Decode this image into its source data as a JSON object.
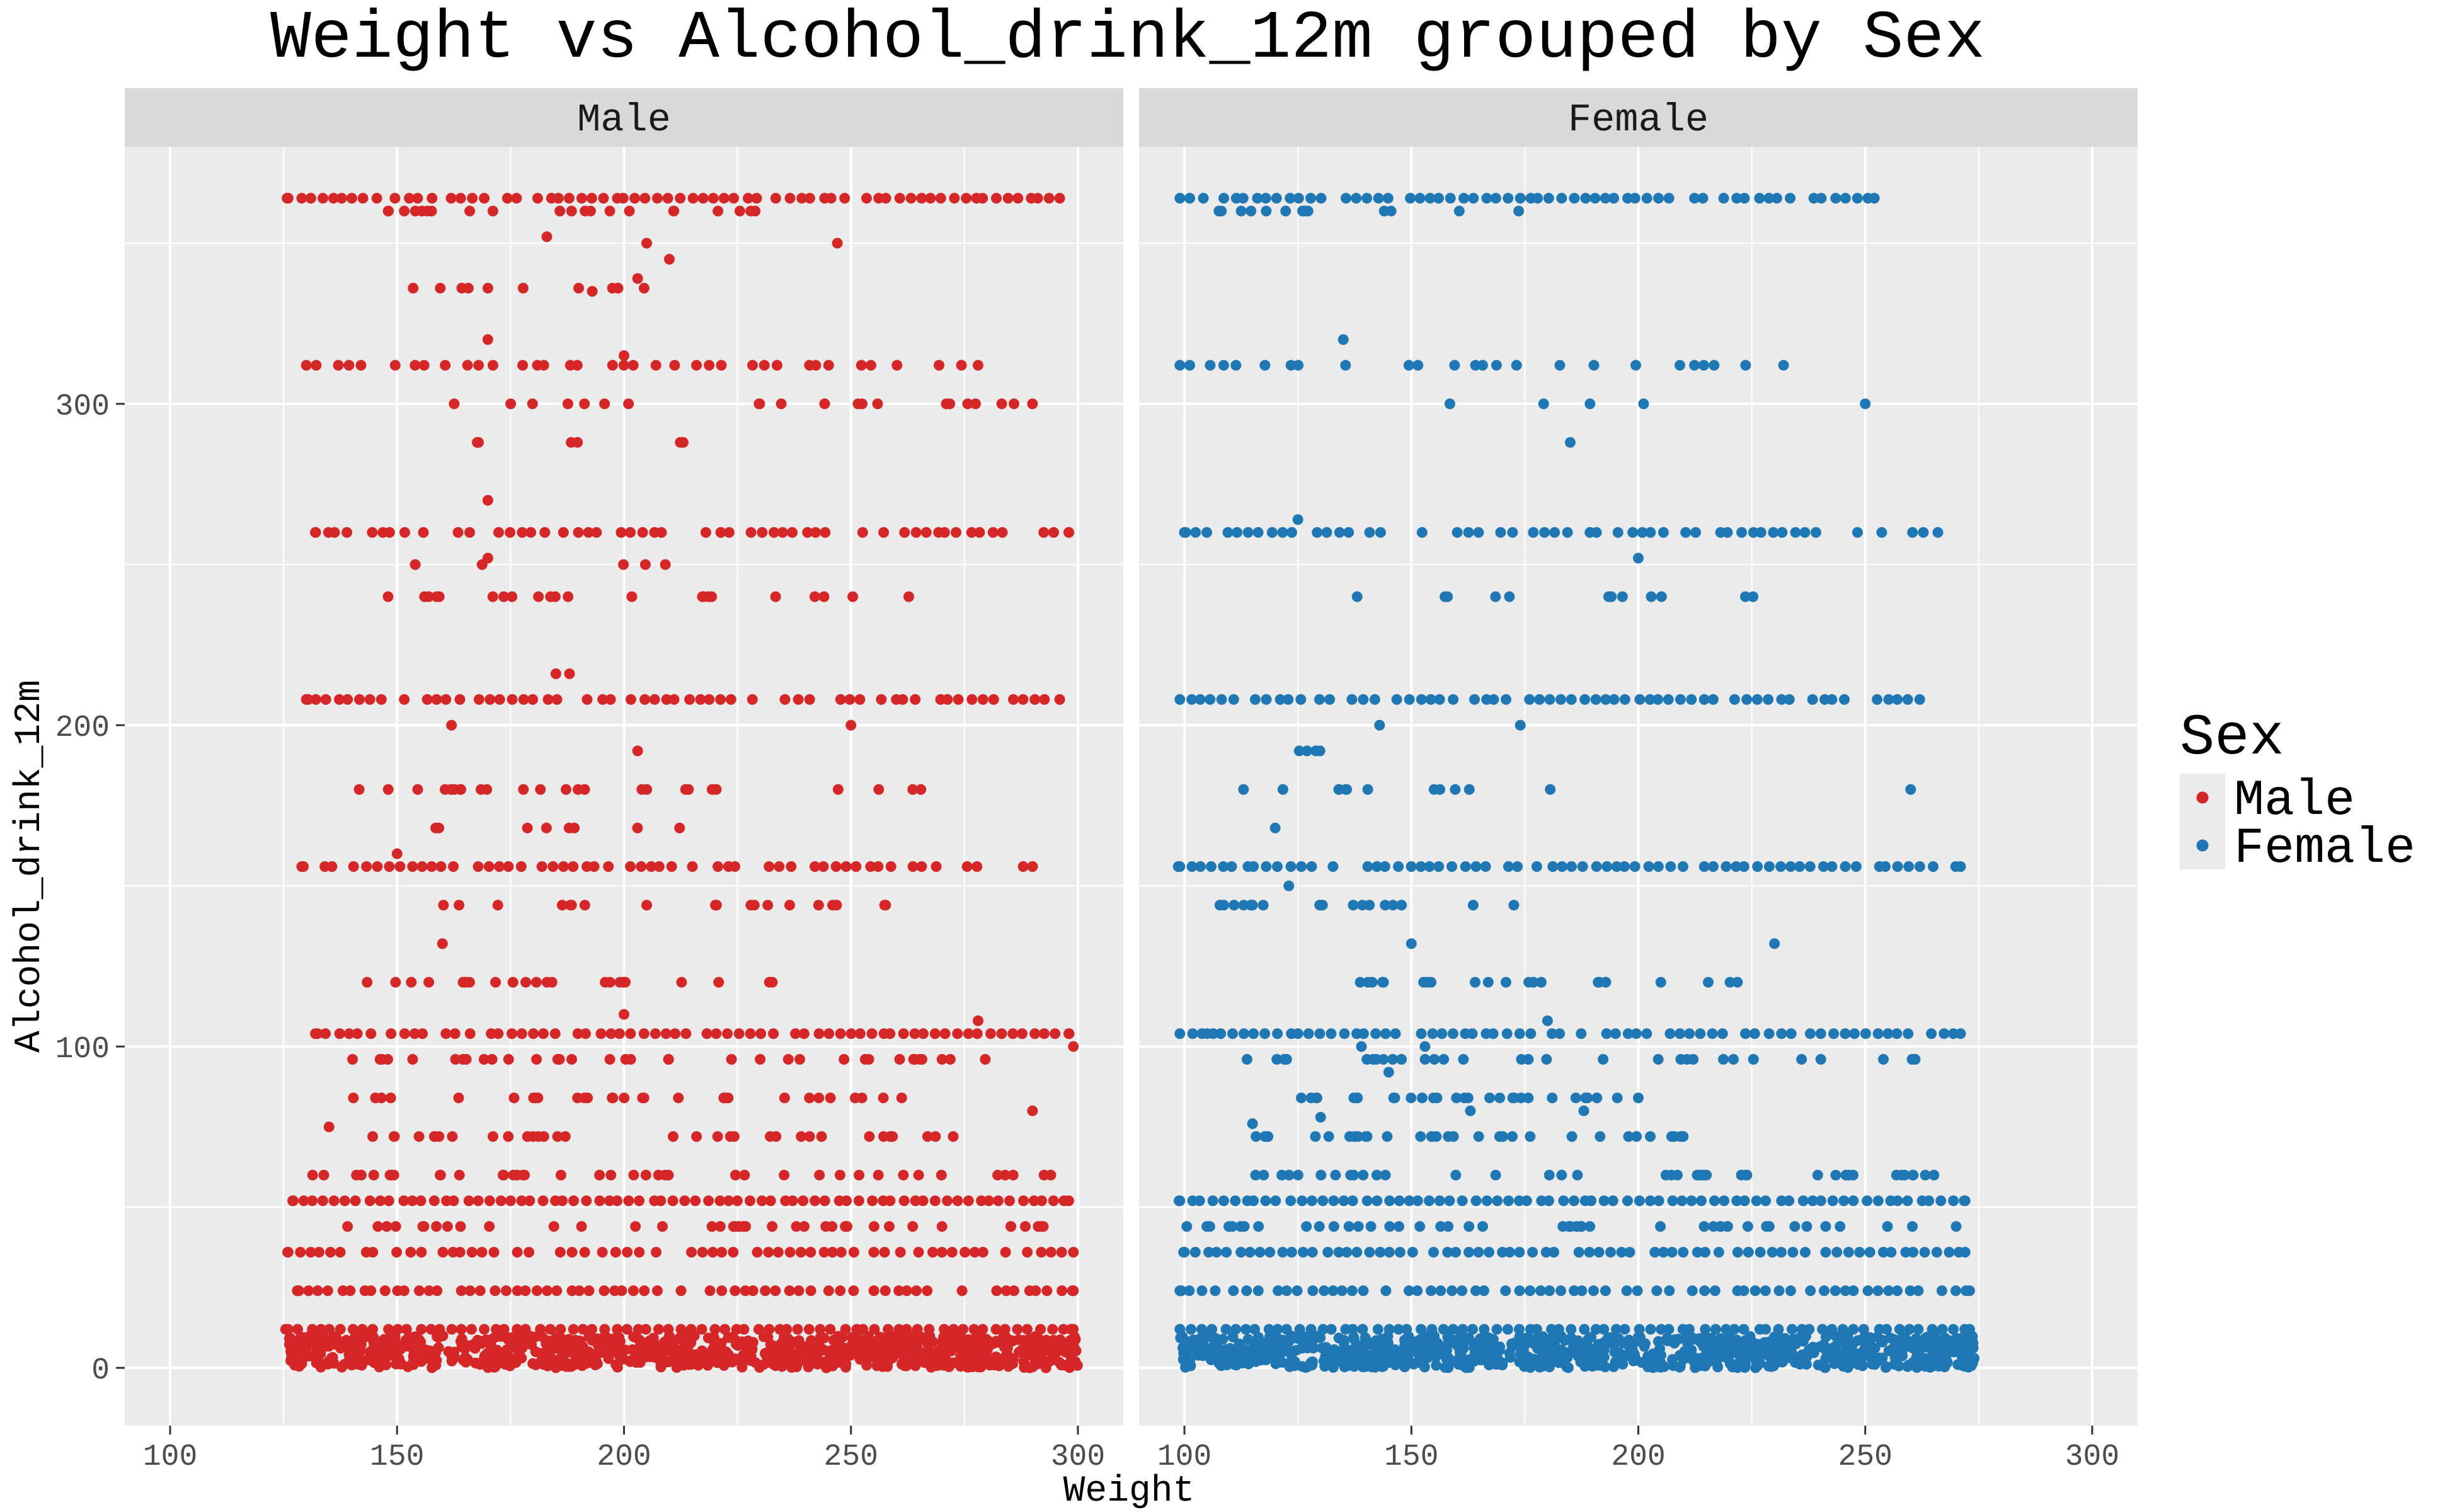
{
  "chart_data": {
    "type": "scatter",
    "title": "Weight vs Alcohol_drink_12m grouped by Sex",
    "xlabel": "Weight",
    "ylabel": "Alcohol_drink_12m",
    "xlim": [
      90,
      310
    ],
    "ylim": [
      -18,
      380
    ],
    "x_ticks": [
      100,
      150,
      200,
      250,
      300
    ],
    "y_ticks": [
      0,
      100,
      200,
      300
    ],
    "grid": true,
    "facet_by": "Sex",
    "legend": {
      "title": "Sex",
      "placement": "right",
      "items": [
        {
          "label": "Male",
          "color": "#D62728"
        },
        {
          "label": "Female",
          "color": "#1F77B4"
        }
      ]
    },
    "colors": {
      "male": "#D62728",
      "female": "#1F77B4",
      "panel_bg": "#EBEBEB",
      "strip_bg": "#D9D9D9",
      "grid": "#FFFFFF"
    },
    "panels": [
      {
        "label": "Male",
        "color": "#D62728",
        "x_range": [
          126,
          300
        ],
        "bands": [
          {
            "y": 364,
            "x": [
              126,
              296
            ],
            "density": 0.85
          },
          {
            "y": 312,
            "x": [
              130,
              278
            ],
            "density": 0.55
          },
          {
            "y": 260,
            "x": [
              132,
              298
            ],
            "density": 0.75
          },
          {
            "y": 208,
            "x": [
              130,
              296
            ],
            "density": 0.8
          },
          {
            "y": 156,
            "x": [
              129,
              290
            ],
            "density": 0.8
          },
          {
            "y": 104,
            "x": [
              132,
              298
            ],
            "density": 0.9
          },
          {
            "y": 52,
            "x": [
              127,
              298
            ],
            "density": 1.0
          },
          {
            "y": 36,
            "x": [
              126,
              299
            ],
            "density": 0.8
          },
          {
            "y": 24,
            "x": [
              128,
              299
            ],
            "density": 0.85
          },
          {
            "y": 12,
            "x": [
              126,
              299
            ],
            "density": 1.0
          }
        ],
        "low_cloud": {
          "y": [
            0,
            10
          ],
          "x": [
            126,
            300
          ],
          "count": 900
        },
        "scatter_levels": [
          {
            "y": 360,
            "x": [
              140,
              230
            ],
            "count": 22
          },
          {
            "y": 336,
            "x": [
              145,
              210
            ],
            "count": 8
          },
          {
            "y": 300,
            "x": [
              158,
              290
            ],
            "count": 20
          },
          {
            "y": 288,
            "x": [
              156,
              220
            ],
            "count": 6
          },
          {
            "y": 250,
            "x": [
              143,
              212
            ],
            "count": 5
          },
          {
            "y": 240,
            "x": [
              140,
              270
            ],
            "count": 22
          },
          {
            "y": 180,
            "x": [
              141,
              272
            ],
            "count": 25
          },
          {
            "y": 168,
            "x": [
              156,
              224
            ],
            "count": 8
          },
          {
            "y": 144,
            "x": [
              140,
              262
            ],
            "count": 20
          },
          {
            "y": 120,
            "x": [
              140,
              238
            ],
            "count": 22
          },
          {
            "y": 96,
            "x": [
              136,
              280
            ],
            "count": 35
          },
          {
            "y": 84,
            "x": [
              140,
              262
            ],
            "count": 30
          },
          {
            "y": 72,
            "x": [
              138,
              278
            ],
            "count": 32
          },
          {
            "y": 60,
            "x": [
              126,
              300
            ],
            "count": 40
          },
          {
            "y": 44,
            "x": [
              130,
              296
            ],
            "count": 40
          }
        ],
        "extra_points": [
          {
            "x": 183,
            "y": 352
          },
          {
            "x": 247,
            "y": 350
          },
          {
            "x": 205,
            "y": 350
          },
          {
            "x": 210,
            "y": 345
          },
          {
            "x": 170,
            "y": 336
          },
          {
            "x": 190,
            "y": 336
          },
          {
            "x": 193,
            "y": 335
          },
          {
            "x": 203,
            "y": 339
          },
          {
            "x": 170,
            "y": 320
          },
          {
            "x": 200,
            "y": 315
          },
          {
            "x": 290,
            "y": 300
          },
          {
            "x": 170,
            "y": 270
          },
          {
            "x": 170,
            "y": 252
          },
          {
            "x": 185,
            "y": 216
          },
          {
            "x": 188,
            "y": 216
          },
          {
            "x": 162,
            "y": 200
          },
          {
            "x": 250,
            "y": 200
          },
          {
            "x": 203,
            "y": 192
          },
          {
            "x": 150,
            "y": 160
          },
          {
            "x": 160,
            "y": 132
          },
          {
            "x": 200,
            "y": 110
          },
          {
            "x": 278,
            "y": 108
          },
          {
            "x": 299,
            "y": 100
          },
          {
            "x": 290,
            "y": 80
          },
          {
            "x": 135,
            "y": 75
          }
        ]
      },
      {
        "label": "Female",
        "color": "#1F77B4",
        "x_range": [
          99,
          274
        ],
        "bands": [
          {
            "y": 364,
            "x": [
              99,
              252
            ],
            "density": 0.9
          },
          {
            "y": 312,
            "x": [
              99,
              232
            ],
            "density": 0.45
          },
          {
            "y": 260,
            "x": [
              100,
              266
            ],
            "density": 0.75
          },
          {
            "y": 208,
            "x": [
              99,
              262
            ],
            "density": 0.8
          },
          {
            "y": 156,
            "x": [
              99,
              271
            ],
            "density": 0.85
          },
          {
            "y": 104,
            "x": [
              99,
              271
            ],
            "density": 0.9
          },
          {
            "y": 52,
            "x": [
              99,
              272
            ],
            "density": 1.0
          },
          {
            "y": 36,
            "x": [
              100,
              272
            ],
            "density": 0.85
          },
          {
            "y": 24,
            "x": [
              99,
              273
            ],
            "density": 0.85
          },
          {
            "y": 12,
            "x": [
              99,
              273
            ],
            "density": 1.0
          }
        ],
        "low_cloud": {
          "y": [
            0,
            10
          ],
          "x": [
            99,
            274
          ],
          "count": 900
        },
        "scatter_levels": [
          {
            "y": 360,
            "x": [
              102,
              180
            ],
            "count": 14
          },
          {
            "y": 300,
            "x": [
              140,
              250
            ],
            "count": 4
          },
          {
            "y": 288,
            "x": [
              185,
              185
            ],
            "count": 1
          },
          {
            "y": 240,
            "x": [
              114,
              235
            ],
            "count": 12
          },
          {
            "y": 192,
            "x": [
              125,
              135
            ],
            "count": 4
          },
          {
            "y": 180,
            "x": [
              113,
              185
            ],
            "count": 12
          },
          {
            "y": 144,
            "x": [
              106,
              200
            ],
            "count": 18
          },
          {
            "y": 120,
            "x": [
              129,
              230
            ],
            "count": 22
          },
          {
            "y": 96,
            "x": [
              108,
              262
            ],
            "count": 30
          },
          {
            "y": 84,
            "x": [
              125,
              200
            ],
            "count": 28
          },
          {
            "y": 72,
            "x": [
              115,
              220
            ],
            "count": 32
          },
          {
            "y": 60,
            "x": [
              114,
              270
            ],
            "count": 40
          },
          {
            "y": 44,
            "x": [
              100,
              272
            ],
            "count": 45
          }
        ],
        "extra_points": [
          {
            "x": 135,
            "y": 320
          },
          {
            "x": 250,
            "y": 300
          },
          {
            "x": 125,
            "y": 264
          },
          {
            "x": 200,
            "y": 252
          },
          {
            "x": 143,
            "y": 200
          },
          {
            "x": 174,
            "y": 200
          },
          {
            "x": 260,
            "y": 180
          },
          {
            "x": 120,
            "y": 168
          },
          {
            "x": 123,
            "y": 150
          },
          {
            "x": 150,
            "y": 132
          },
          {
            "x": 230,
            "y": 132
          },
          {
            "x": 180,
            "y": 108
          },
          {
            "x": 139,
            "y": 100
          },
          {
            "x": 153,
            "y": 100
          },
          {
            "x": 261,
            "y": 96
          },
          {
            "x": 200,
            "y": 84
          },
          {
            "x": 115,
            "y": 76
          },
          {
            "x": 130,
            "y": 78
          },
          {
            "x": 145,
            "y": 92
          },
          {
            "x": 163,
            "y": 80
          },
          {
            "x": 188,
            "y": 80
          },
          {
            "x": 105,
            "y": 104
          },
          {
            "x": 272,
            "y": 2
          },
          {
            "x": 274,
            "y": 3
          }
        ]
      }
    ]
  }
}
